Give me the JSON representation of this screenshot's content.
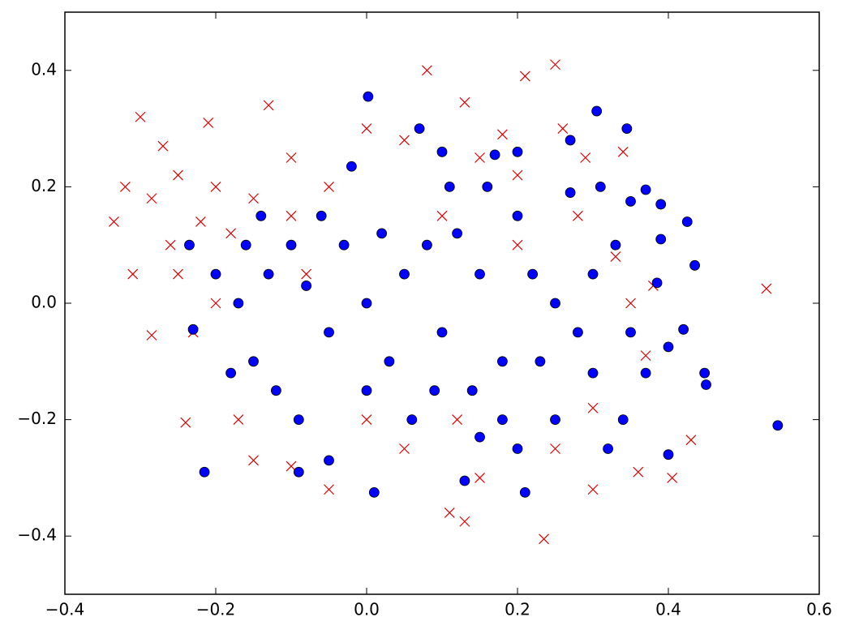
{
  "chart_data": {
    "type": "scatter",
    "xlim": [
      -0.4,
      0.6
    ],
    "ylim": [
      -0.5,
      0.5
    ],
    "xticks": [
      {
        "value": -0.4,
        "label": "−0.4"
      },
      {
        "value": -0.2,
        "label": "−0.2"
      },
      {
        "value": 0,
        "label": "0.0"
      },
      0.2,
      0.4,
      0.6
    ],
    "yticks": [
      {
        "value": -0.4,
        "label": "−0.4"
      },
      {
        "value": -0.2,
        "label": "−0.2"
      },
      {
        "value": 0,
        "label": "0.0"
      },
      0.2,
      0.4
    ],
    "series": [
      {
        "color": "#e00000",
        "marker": "x",
        "x": [
          -0.3,
          -0.335,
          0.53,
          0.235,
          0.405,
          0.43,
          0.25,
          0.21,
          0.13,
          0.3,
          -0.24,
          0.08,
          -0.27,
          -0.285,
          -0.32,
          -0.26,
          -0.21,
          -0.13,
          0.13,
          0.11,
          -0.05,
          0.37,
          0.36,
          -0.31,
          -0.285,
          0.34,
          -0.25,
          -0.2,
          -0.15,
          -0.1,
          -0.22,
          -0.18,
          -0.25,
          -0.2,
          -0.23,
          -0.1,
          0.0,
          0.05,
          0.15,
          0.2,
          -0.05,
          0.1,
          0.0,
          0.05,
          -0.1,
          0.15,
          0.25,
          0.3,
          0.35,
          0.38,
          0.33,
          0.29,
          0.18,
          0.26,
          -0.17,
          -0.15,
          -0.08,
          0.12,
          0.2,
          0.28
        ],
        "values": [
          0.32,
          0.14,
          0.025,
          -0.405,
          -0.3,
          -0.235,
          0.41,
          0.39,
          0.345,
          -0.32,
          -0.205,
          0.4,
          0.27,
          0.18,
          0.2,
          0.1,
          0.31,
          0.34,
          -0.375,
          -0.36,
          -0.32,
          -0.09,
          -0.29,
          0.05,
          -0.055,
          0.26,
          0.22,
          0.2,
          0.18,
          0.15,
          0.14,
          0.12,
          0.05,
          0.0,
          -0.05,
          0.25,
          0.3,
          0.28,
          0.25,
          0.22,
          0.2,
          0.15,
          -0.2,
          -0.25,
          -0.28,
          -0.3,
          -0.25,
          -0.18,
          0.0,
          0.03,
          0.08,
          0.25,
          0.29,
          0.3,
          -0.2,
          -0.27,
          0.05,
          -0.2,
          0.1,
          0.15
        ]
      },
      {
        "color": "#0000ff",
        "marker": "o",
        "x": [
          0.545,
          0.448,
          0.45,
          0.4,
          -0.215,
          0.002,
          0.305,
          0.345,
          0.21,
          0.01,
          0.13,
          -0.23,
          -0.235,
          0.425,
          0.435,
          0.42,
          0.4,
          0.39,
          0.385,
          0.37,
          0.39,
          0.35,
          -0.02,
          -0.09,
          -0.05,
          0.07,
          0.1,
          0.17,
          0.2,
          0.27,
          0.31,
          0.33,
          0.35,
          0.3,
          0.25,
          0.2,
          0.15,
          0.34,
          0.37,
          0.32,
          -0.2,
          -0.17,
          -0.15,
          -0.12,
          -0.1,
          -0.08,
          -0.05,
          0.0,
          0.03,
          0.05,
          0.08,
          0.1,
          0.12,
          0.15,
          0.18,
          0.2,
          0.22,
          0.25,
          0.28,
          -0.14,
          -0.06,
          0.0,
          -0.03,
          0.06,
          -0.18,
          -0.13,
          -0.16,
          0.14,
          0.02,
          0.09,
          0.27,
          0.23,
          0.3,
          0.16,
          -0.09,
          0.11,
          0.18
        ],
        "values": [
          -0.21,
          -0.12,
          -0.14,
          -0.26,
          -0.29,
          0.355,
          0.33,
          0.3,
          -0.325,
          -0.325,
          -0.305,
          -0.045,
          0.1,
          0.14,
          0.065,
          -0.045,
          -0.075,
          0.11,
          0.035,
          0.195,
          0.17,
          0.175,
          0.235,
          -0.29,
          -0.27,
          0.3,
          0.26,
          0.255,
          0.26,
          0.28,
          0.2,
          0.1,
          -0.05,
          -0.12,
          -0.2,
          -0.25,
          -0.23,
          -0.2,
          -0.12,
          -0.25,
          0.05,
          0.0,
          -0.1,
          -0.15,
          0.1,
          0.03,
          -0.05,
          0.0,
          -0.1,
          0.05,
          0.1,
          -0.05,
          0.12,
          0.05,
          -0.1,
          0.15,
          0.05,
          0.0,
          -0.05,
          0.15,
          0.15,
          -0.15,
          0.1,
          -0.2,
          -0.12,
          0.05,
          0.1,
          -0.15,
          0.12,
          -0.15,
          0.19,
          -0.1,
          0.05,
          0.2,
          -0.2,
          0.2,
          -0.2
        ]
      }
    ]
  }
}
